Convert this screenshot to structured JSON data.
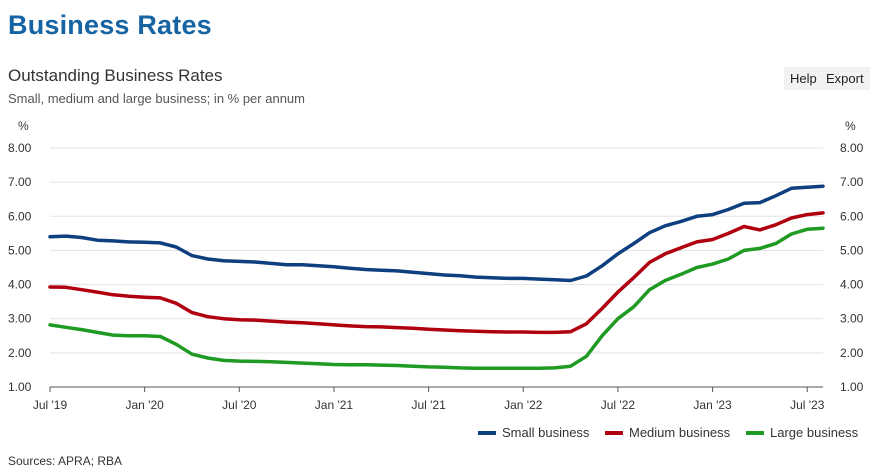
{
  "page": {
    "heading": "Business Rates"
  },
  "toolbar": {
    "help_label": "Help",
    "export_label": "Export"
  },
  "footer": {
    "sources": "Sources: APRA; RBA"
  },
  "chart_data": {
    "type": "line",
    "title": "Outstanding Business Rates",
    "subtitle": "Small, medium and large business; in % per annum",
    "ylabel_left": "%",
    "ylabel_right": "%",
    "ylim": [
      1.0,
      8.0
    ],
    "yticks": [
      "8.00",
      "7.00",
      "6.00",
      "5.00",
      "4.00",
      "3.00",
      "2.00",
      "1.00"
    ],
    "grid": true,
    "legend_position": "bottom-right",
    "x": [
      "2019-07",
      "2019-08",
      "2019-09",
      "2019-10",
      "2019-11",
      "2019-12",
      "2020-01",
      "2020-02",
      "2020-03",
      "2020-04",
      "2020-05",
      "2020-06",
      "2020-07",
      "2020-08",
      "2020-09",
      "2020-10",
      "2020-11",
      "2020-12",
      "2021-01",
      "2021-02",
      "2021-03",
      "2021-04",
      "2021-05",
      "2021-06",
      "2021-07",
      "2021-08",
      "2021-09",
      "2021-10",
      "2021-11",
      "2021-12",
      "2022-01",
      "2022-02",
      "2022-03",
      "2022-04",
      "2022-05",
      "2022-06",
      "2022-07",
      "2022-08",
      "2022-09",
      "2022-10",
      "2022-11",
      "2022-12",
      "2023-01",
      "2023-02",
      "2023-03",
      "2023-04",
      "2023-05",
      "2023-06",
      "2023-07",
      "2023-08"
    ],
    "xticks": [
      {
        "x": "2019-07",
        "label": "Jul '19"
      },
      {
        "x": "2020-01",
        "label": "Jan '20"
      },
      {
        "x": "2020-07",
        "label": "Jul '20"
      },
      {
        "x": "2021-01",
        "label": "Jan '21"
      },
      {
        "x": "2021-07",
        "label": "Jul '21"
      },
      {
        "x": "2022-01",
        "label": "Jan '22"
      },
      {
        "x": "2022-07",
        "label": "Jul '22"
      },
      {
        "x": "2023-01",
        "label": "Jan '23"
      },
      {
        "x": "2023-07",
        "label": "Jul '23"
      }
    ],
    "series": [
      {
        "name": "Small business",
        "color": "#0e3f7e",
        "values": [
          5.4,
          5.42,
          5.38,
          5.3,
          5.28,
          5.25,
          5.24,
          5.22,
          5.1,
          4.85,
          4.75,
          4.7,
          4.68,
          4.66,
          4.62,
          4.58,
          4.58,
          4.55,
          4.52,
          4.48,
          4.44,
          4.42,
          4.4,
          4.36,
          4.32,
          4.28,
          4.26,
          4.22,
          4.2,
          4.18,
          4.18,
          4.16,
          4.14,
          4.12,
          4.25,
          4.55,
          4.9,
          5.2,
          5.52,
          5.72,
          5.85,
          6.0,
          6.05,
          6.2,
          6.38,
          6.4,
          6.6,
          6.82,
          6.85,
          6.88
        ]
      },
      {
        "name": "Medium business",
        "color": "#b0000f",
        "values": [
          3.93,
          3.92,
          3.85,
          3.78,
          3.7,
          3.66,
          3.63,
          3.61,
          3.45,
          3.18,
          3.06,
          3.0,
          2.97,
          2.96,
          2.93,
          2.9,
          2.88,
          2.85,
          2.82,
          2.79,
          2.77,
          2.76,
          2.74,
          2.72,
          2.69,
          2.67,
          2.65,
          2.63,
          2.62,
          2.61,
          2.61,
          2.6,
          2.6,
          2.62,
          2.85,
          3.3,
          3.78,
          4.2,
          4.65,
          4.9,
          5.08,
          5.25,
          5.32,
          5.5,
          5.7,
          5.6,
          5.75,
          5.95,
          6.05,
          6.1
        ]
      },
      {
        "name": "Large business",
        "color": "#1f9a22",
        "values": [
          2.82,
          2.75,
          2.68,
          2.6,
          2.52,
          2.5,
          2.5,
          2.48,
          2.25,
          1.96,
          1.85,
          1.78,
          1.76,
          1.75,
          1.74,
          1.72,
          1.7,
          1.68,
          1.66,
          1.65,
          1.65,
          1.64,
          1.63,
          1.61,
          1.59,
          1.58,
          1.56,
          1.55,
          1.55,
          1.55,
          1.55,
          1.55,
          1.56,
          1.61,
          1.9,
          2.5,
          3.0,
          3.35,
          3.85,
          4.12,
          4.3,
          4.5,
          4.6,
          4.75,
          5.0,
          5.06,
          5.2,
          5.48,
          5.62,
          5.65
        ]
      }
    ]
  }
}
